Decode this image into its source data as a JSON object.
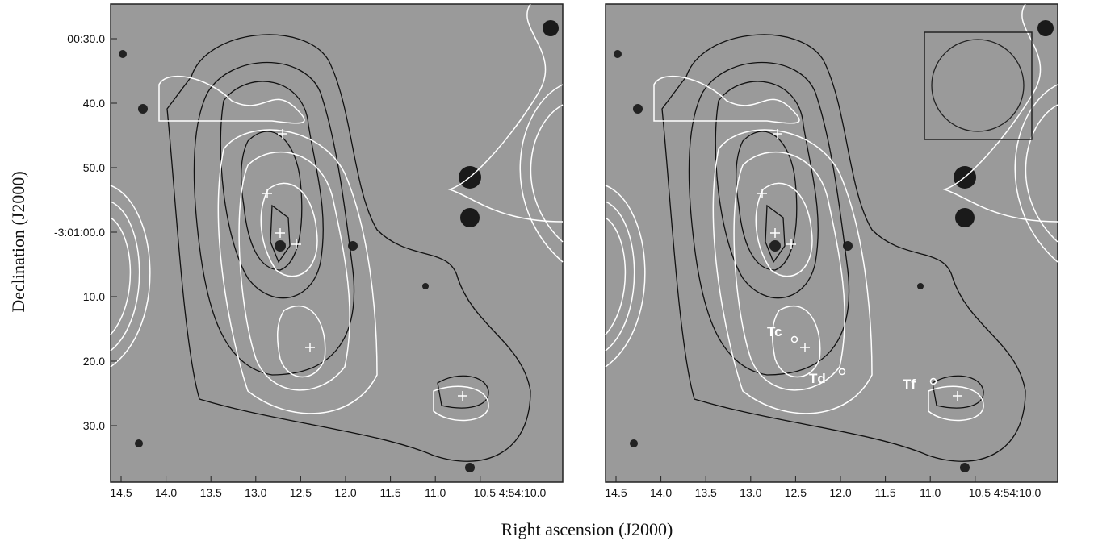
{
  "figure": {
    "x_label": "Right ascension (J2000)",
    "y_label": "Declination (J2000)",
    "x_tick_labels": [
      "14.5",
      "14.0",
      "13.5",
      "13.0",
      "12.5",
      "12.0",
      "11.5",
      "11.0",
      "10.5 4:54:10.0"
    ],
    "y_tick_labels": [
      "00:30.0",
      "40.0",
      "50.0",
      "-3:01:00.0",
      "10.0",
      "20.0",
      "30.0"
    ],
    "right_panel_labels": [
      "Tc",
      "Td",
      "Tf"
    ]
  }
}
